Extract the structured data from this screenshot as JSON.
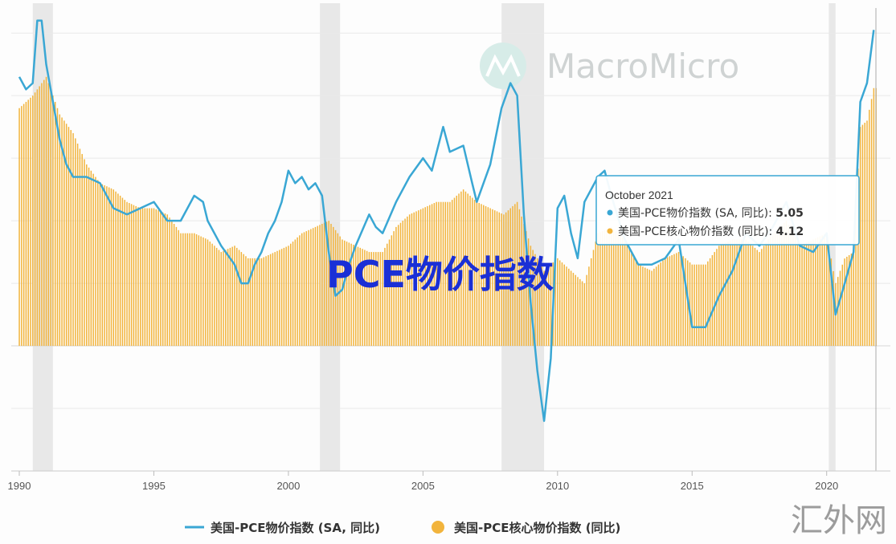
{
  "watermark": "MacroMicro",
  "overlay_title": "PCE物价指数",
  "corner_mark": "汇外网",
  "tooltip": {
    "date": "October 2021",
    "rows": [
      {
        "label": "美国-PCE物价指数 (SA, 同比): ",
        "value": "5.05"
      },
      {
        "label": "美国-PCE核心物价指数 (同比): ",
        "value": "4.12"
      }
    ]
  },
  "legend": [
    {
      "label": "美国-PCE物价指数 (SA, 同比)",
      "icon": "line-legend-icon"
    },
    {
      "label": "美国-PCE核心物价指数 (同比)",
      "icon": "dot-legend-icon"
    }
  ],
  "chart_data": {
    "type": "line",
    "x_ticks": [
      "1990",
      "1995",
      "2000",
      "2005",
      "2010",
      "2015",
      "2020"
    ],
    "xlim": [
      1990,
      2021.83
    ],
    "ylim": [
      -2,
      5.4
    ],
    "grid": true,
    "legend_position": "bottom",
    "colors": {
      "headline": "#3aa7d4",
      "core": "#f2b43c",
      "recession": "#e8e8e8"
    },
    "recessions": [
      [
        1990.5,
        1991.25
      ],
      [
        2001.17,
        2001.92
      ],
      [
        2007.92,
        2009.5
      ],
      [
        2020.08,
        2020.33
      ]
    ],
    "series": [
      {
        "name": "美国-PCE物价指数 (SA, 同比)",
        "kind": "line",
        "x": [
          1990.0,
          1990.25,
          1990.5,
          1990.67,
          1990.83,
          1991.0,
          1991.25,
          1991.5,
          1991.75,
          1992.0,
          1992.5,
          1993.0,
          1993.5,
          1994.0,
          1994.5,
          1995.0,
          1995.5,
          1996.0,
          1996.5,
          1996.83,
          1997.0,
          1997.5,
          1998.0,
          1998.25,
          1998.5,
          1998.75,
          1999.0,
          1999.25,
          1999.5,
          1999.75,
          2000.0,
          2000.25,
          2000.5,
          2000.75,
          2001.0,
          2001.25,
          2001.5,
          2001.75,
          2002.0,
          2002.25,
          2002.5,
          2003.0,
          2003.25,
          2003.5,
          2004.0,
          2004.5,
          2005.0,
          2005.33,
          2005.75,
          2006.0,
          2006.5,
          2006.83,
          2007.0,
          2007.5,
          2007.92,
          2008.25,
          2008.5,
          2008.75,
          2009.0,
          2009.25,
          2009.5,
          2009.75,
          2010.0,
          2010.25,
          2010.5,
          2010.75,
          2011.0,
          2011.5,
          2011.75,
          2012.0,
          2012.5,
          2013.0,
          2013.5,
          2014.0,
          2014.5,
          2015.0,
          2015.5,
          2016.0,
          2016.5,
          2017.0,
          2017.5,
          2018.0,
          2018.5,
          2019.0,
          2019.5,
          2020.0,
          2020.33,
          2020.67,
          2021.0,
          2021.25,
          2021.5,
          2021.75
        ],
        "values": [
          4.3,
          4.1,
          4.2,
          5.2,
          5.2,
          4.5,
          3.9,
          3.3,
          2.9,
          2.7,
          2.7,
          2.6,
          2.2,
          2.1,
          2.2,
          2.3,
          2.0,
          2.0,
          2.4,
          2.3,
          2.0,
          1.6,
          1.3,
          1.0,
          1.0,
          1.3,
          1.5,
          1.8,
          2.0,
          2.3,
          2.8,
          2.6,
          2.7,
          2.5,
          2.6,
          2.4,
          1.5,
          0.8,
          0.9,
          1.3,
          1.6,
          2.1,
          1.9,
          1.8,
          2.3,
          2.7,
          3.0,
          2.8,
          3.5,
          3.1,
          3.2,
          2.6,
          2.3,
          2.9,
          3.8,
          4.2,
          4.0,
          2.1,
          0.7,
          -0.4,
          -1.2,
          -0.2,
          2.2,
          2.4,
          1.8,
          1.4,
          2.3,
          2.7,
          2.8,
          2.4,
          1.7,
          1.3,
          1.3,
          1.4,
          1.7,
          0.3,
          0.3,
          0.8,
          1.2,
          1.8,
          1.6,
          1.9,
          2.3,
          1.6,
          1.5,
          1.8,
          0.5,
          1.0,
          1.5,
          3.9,
          4.2,
          5.05
        ]
      },
      {
        "name": "美国-PCE核心物价指数 (同比)",
        "kind": "bar",
        "x": [
          1990.0,
          1990.5,
          1991.0,
          1991.5,
          1992.0,
          1992.5,
          1993.0,
          1993.5,
          1994.0,
          1994.5,
          1995.0,
          1995.5,
          1996.0,
          1996.5,
          1997.0,
          1997.5,
          1998.0,
          1998.5,
          1999.0,
          1999.5,
          2000.0,
          2000.5,
          2001.0,
          2001.5,
          2002.0,
          2002.5,
          2003.0,
          2003.5,
          2004.0,
          2004.5,
          2005.0,
          2005.5,
          2006.0,
          2006.5,
          2007.0,
          2007.5,
          2008.0,
          2008.5,
          2009.0,
          2009.5,
          2010.0,
          2010.5,
          2011.0,
          2011.5,
          2012.0,
          2012.5,
          2013.0,
          2013.5,
          2014.0,
          2014.5,
          2015.0,
          2015.5,
          2016.0,
          2016.5,
          2017.0,
          2017.5,
          2018.0,
          2018.5,
          2019.0,
          2019.5,
          2020.0,
          2020.33,
          2020.67,
          2021.0,
          2021.25,
          2021.5,
          2021.75
        ],
        "values": [
          3.8,
          4.0,
          4.3,
          3.7,
          3.4,
          2.9,
          2.6,
          2.5,
          2.3,
          2.2,
          2.2,
          2.1,
          1.8,
          1.8,
          1.7,
          1.5,
          1.6,
          1.4,
          1.4,
          1.5,
          1.6,
          1.8,
          1.9,
          2.0,
          1.7,
          1.6,
          1.5,
          1.5,
          1.9,
          2.1,
          2.2,
          2.3,
          2.3,
          2.5,
          2.3,
          2.2,
          2.1,
          2.3,
          1.6,
          1.2,
          1.4,
          1.2,
          1.0,
          1.8,
          1.9,
          1.7,
          1.3,
          1.2,
          1.4,
          1.5,
          1.3,
          1.3,
          1.6,
          1.7,
          1.7,
          1.5,
          1.8,
          2.0,
          1.6,
          1.7,
          1.8,
          1.0,
          1.4,
          1.5,
          3.5,
          3.6,
          4.12
        ]
      }
    ]
  }
}
